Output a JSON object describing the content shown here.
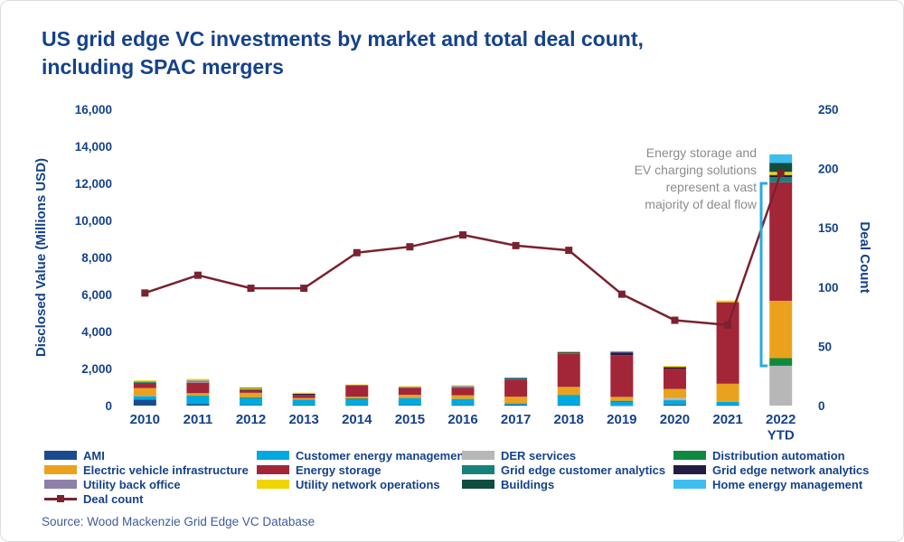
{
  "chart_data": {
    "type": "bar+line",
    "title": "US grid edge VC investments by market and total deal count,\nincluding SPAC mergers",
    "source": "Source: Wood Mackenzie Grid Edge VC Database",
    "categories": [
      "2010",
      "2011",
      "2012",
      "2013",
      "2014",
      "2015",
      "2016",
      "2017",
      "2018",
      "2019",
      "2020",
      "2021",
      "2022\nYTD"
    ],
    "y_left": {
      "label": "Disclosed Value (Millions USD)",
      "min": 0,
      "max": 16000,
      "step": 2000
    },
    "y_right": {
      "label": "Deal Count",
      "min": 0,
      "max": 250,
      "step": 50
    },
    "stack_series": [
      {
        "name": "AMI",
        "color": "#1B4A8F",
        "values": [
          320,
          90,
          30,
          20,
          20,
          30,
          20,
          60,
          20,
          10,
          60,
          20,
          0
        ]
      },
      {
        "name": "Customer energy management",
        "color": "#00A9E0",
        "values": [
          200,
          430,
          380,
          300,
          330,
          380,
          340,
          60,
          560,
          190,
          230,
          180,
          0
        ]
      },
      {
        "name": "DER services",
        "color": "#B7B7B7",
        "values": [
          10,
          0,
          0,
          0,
          0,
          0,
          0,
          0,
          0,
          0,
          130,
          0,
          2150
        ]
      },
      {
        "name": "Distribution automation",
        "color": "#0D8A3F",
        "values": [
          0,
          30,
          30,
          0,
          40,
          0,
          0,
          0,
          0,
          60,
          0,
          0,
          410
        ]
      },
      {
        "name": "Electric vehicle infrastructure",
        "color": "#EAA21E",
        "values": [
          420,
          120,
          250,
          90,
          90,
          170,
          200,
          360,
          430,
          210,
          480,
          980,
          3100
        ]
      },
      {
        "name": "Energy storage",
        "color": "#A32638",
        "values": [
          280,
          560,
          140,
          170,
          620,
          370,
          410,
          930,
          1780,
          2250,
          1100,
          4400,
          6400
        ]
      },
      {
        "name": "Grid edge customer analytics",
        "color": "#15837C",
        "values": [
          60,
          0,
          60,
          0,
          0,
          0,
          0,
          60,
          60,
          0,
          0,
          0,
          280
        ]
      },
      {
        "name": "Grid edge network analytics",
        "color": "#241C45",
        "values": [
          0,
          0,
          0,
          60,
          0,
          0,
          0,
          30,
          40,
          150,
          80,
          0,
          115
        ]
      },
      {
        "name": "Utility back office",
        "color": "#8E7FA8",
        "values": [
          0,
          130,
          0,
          0,
          0,
          60,
          90,
          0,
          0,
          60,
          0,
          0,
          0
        ]
      },
      {
        "name": "Utility network operations",
        "color": "#F0D500",
        "values": [
          70,
          80,
          60,
          60,
          40,
          40,
          40,
          0,
          40,
          0,
          60,
          90,
          165
        ]
      },
      {
        "name": "Buildings",
        "color": "#0F4D3F",
        "values": [
          0,
          0,
          30,
          0,
          0,
          0,
          0,
          0,
          0,
          0,
          0,
          0,
          490
        ]
      },
      {
        "name": "Home energy management",
        "color": "#3DBEEE",
        "values": [
          0,
          0,
          0,
          0,
          0,
          0,
          0,
          0,
          0,
          0,
          0,
          0,
          455
        ]
      }
    ],
    "line_series": {
      "name": "Deal count",
      "color": "#7A222F",
      "values": [
        95,
        110,
        99,
        99,
        129,
        134,
        144,
        135,
        131,
        94,
        72,
        68,
        196
      ]
    },
    "annotation": {
      "text": "Energy storage and\nEV charging solutions\nrepresent a vast\nmajority of deal flow",
      "color": "#8C8C8C",
      "bracket_color": "#29ABE2"
    },
    "legend_columns": [
      [
        "AMI",
        "Electric vehicle infrastructure",
        "Utility back office",
        "Deal count"
      ],
      [
        "Customer energy management",
        "Energy storage",
        "Utility network operations"
      ],
      [
        "DER services",
        "Grid edge customer analytics",
        "Buildings"
      ],
      [
        "Distribution automation",
        "Grid edge network analytics",
        "Home energy management"
      ]
    ]
  }
}
